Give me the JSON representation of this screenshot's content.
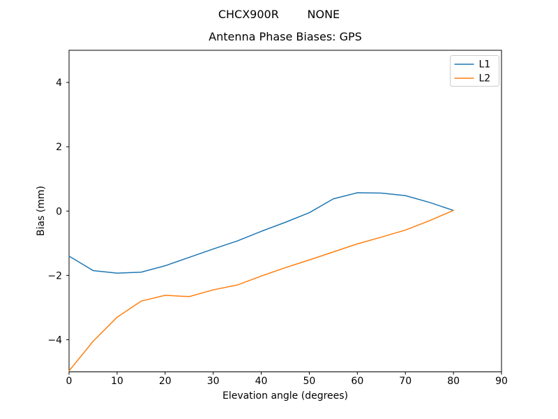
{
  "figure": {
    "background": "#ffffff",
    "text_color": "#000000",
    "legend_border_color": "#cccccc"
  },
  "chart_data": {
    "type": "line",
    "suptitle": "CHCX900R        NONE",
    "title": "Antenna Phase Biases: GPS",
    "xlabel": "Elevation angle (degrees)",
    "ylabel": "Bias (mm)",
    "xlim": [
      0,
      90
    ],
    "ylim": [
      -5,
      5
    ],
    "xticks": [
      0,
      10,
      20,
      30,
      40,
      50,
      60,
      70,
      80,
      90
    ],
    "yticks": [
      -4,
      -2,
      0,
      2,
      4
    ],
    "grid": false,
    "legend": {
      "position": "upper right"
    },
    "x": [
      0,
      5,
      10,
      15,
      20,
      25,
      30,
      35,
      40,
      45,
      50,
      55,
      60,
      65,
      70,
      75,
      80
    ],
    "series": [
      {
        "name": "L1",
        "color": "#1f77b4",
        "values": [
          -1.4,
          -1.85,
          -1.93,
          -1.9,
          -1.7,
          -1.44,
          -1.18,
          -0.93,
          -0.63,
          -0.35,
          -0.05,
          0.38,
          0.57,
          0.56,
          0.48,
          0.27,
          0.02
        ]
      },
      {
        "name": "L2",
        "color": "#ff7f0e",
        "values": [
          -4.97,
          -4.05,
          -3.3,
          -2.8,
          -2.62,
          -2.66,
          -2.45,
          -2.3,
          -2.02,
          -1.76,
          -1.52,
          -1.27,
          -1.02,
          -0.81,
          -0.59,
          -0.3,
          0.02
        ]
      }
    ]
  }
}
